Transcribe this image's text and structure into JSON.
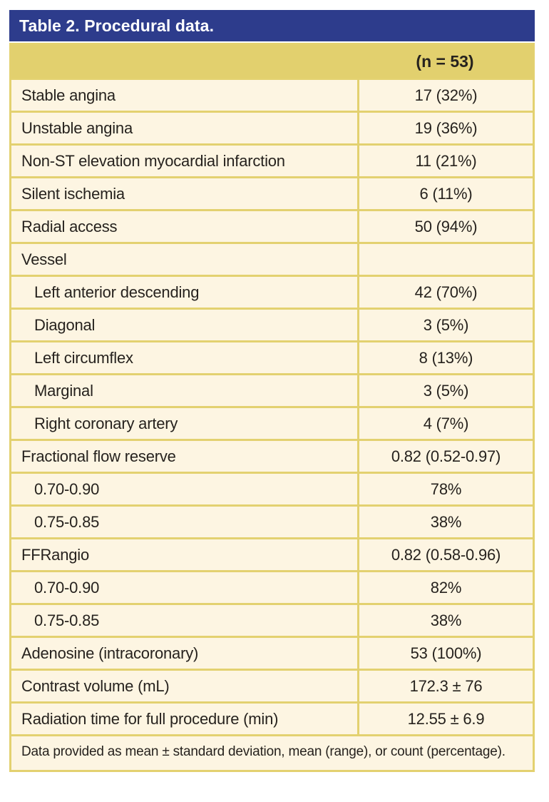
{
  "colors": {
    "title_bar_blue": "#2d3c8c",
    "header_gold": "#e2d06e",
    "border_gold": "#e3d170",
    "row_cream": "#fdf5e2",
    "text": "#26221e",
    "title_text": "#ffffff"
  },
  "table": {
    "title": "Table 2. Procedural data.",
    "column_header": "(n = 53)",
    "rows": [
      {
        "label": "Stable angina",
        "value": "17 (32%)",
        "indent": false
      },
      {
        "label": "Unstable angina",
        "value": "19 (36%)",
        "indent": false
      },
      {
        "label": "Non-ST elevation myocardial infarction",
        "value": "11 (21%)",
        "indent": false
      },
      {
        "label": "Silent ischemia",
        "value": "6 (11%)",
        "indent": false
      },
      {
        "label": "Radial access",
        "value": "50 (94%)",
        "indent": false
      },
      {
        "label": "Vessel",
        "value": "",
        "indent": false
      },
      {
        "label": "Left anterior descending",
        "value": "42 (70%)",
        "indent": true
      },
      {
        "label": "Diagonal",
        "value": "3 (5%)",
        "indent": true
      },
      {
        "label": "Left circumflex",
        "value": "8 (13%)",
        "indent": true
      },
      {
        "label": "Marginal",
        "value": "3 (5%)",
        "indent": true
      },
      {
        "label": "Right coronary artery",
        "value": "4 (7%)",
        "indent": true
      },
      {
        "label": "Fractional flow reserve",
        "value": "0.82 (0.52-0.97)",
        "indent": false
      },
      {
        "label": "0.70-0.90",
        "value": "78%",
        "indent": true
      },
      {
        "label": "0.75-0.85",
        "value": "38%",
        "indent": true
      },
      {
        "label": "FFRangio",
        "value": "0.82 (0.58-0.96)",
        "indent": false
      },
      {
        "label": "0.70-0.90",
        "value": "82%",
        "indent": true
      },
      {
        "label": "0.75-0.85",
        "value": "38%",
        "indent": true
      },
      {
        "label": "Adenosine (intracoronary)",
        "value": "53 (100%)",
        "indent": false
      },
      {
        "label": "Contrast volume (mL)",
        "value": "172.3 ± 76",
        "indent": false
      },
      {
        "label": "Radiation time for full procedure (min)",
        "value": "12.55 ± 6.9",
        "indent": false
      }
    ],
    "footnote": "Data provided as mean ± standard deviation, mean (range), or count (percentage)."
  }
}
